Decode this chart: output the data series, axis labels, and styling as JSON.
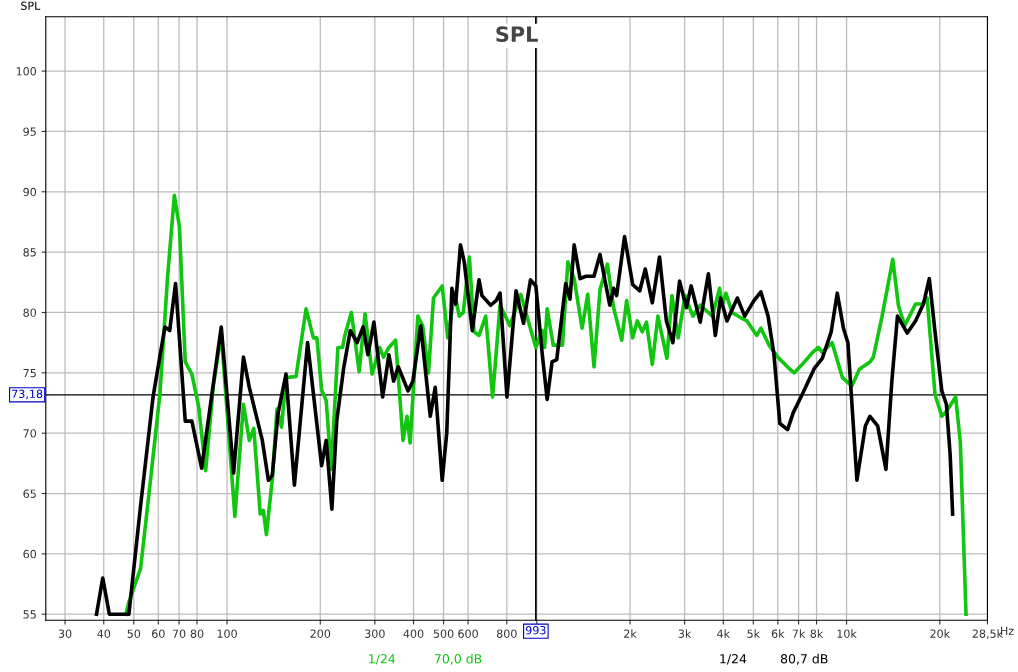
{
  "chart_data": {
    "type": "line",
    "title": "SPL",
    "ylabel": "SPL",
    "log": "x",
    "grid": true,
    "legend": false,
    "xlim": [
      26,
      28500
    ],
    "ylim": [
      54.5,
      104.5
    ],
    "xticks": [
      30,
      40,
      50,
      60,
      70,
      80,
      100,
      200,
      300,
      400,
      500,
      600,
      800,
      {
        "value": 1000,
        "label": null
      },
      {
        "value": 2000,
        "label": "2k"
      },
      {
        "value": 3000,
        "label": "3k"
      },
      {
        "value": 4000,
        "label": "4k"
      },
      {
        "value": 5000,
        "label": "5k"
      },
      {
        "value": 6000,
        "label": "6k"
      },
      {
        "value": 7000,
        "label": "7k"
      },
      {
        "value": 8000,
        "label": "8k"
      },
      {
        "value": 10000,
        "label": "10k"
      },
      {
        "value": 20000,
        "label": "20k"
      },
      {
        "value": 28500,
        "label": "28,5k"
      }
    ],
    "xlabel": "Hz",
    "yticks": [
      55,
      60,
      65,
      70,
      75,
      80,
      85,
      90,
      95,
      100
    ],
    "ref_lines": [
      {
        "axis": "y",
        "value": 73.18,
        "label": "73,18",
        "color": "#000000"
      },
      {
        "axis": "x",
        "value": 993,
        "label": "993",
        "color": "#000000"
      }
    ],
    "annotations": [
      "1/24",
      "70,0 dB",
      "1/24",
      "80,7 dB"
    ],
    "series": [
      {
        "color": "#11c511",
        "x": [
          47.2,
          48.2,
          52.6,
          56.5,
          60.7,
          64.3,
          67.6,
          70.2,
          73.3,
          77,
          81,
          85.3,
          90.4,
          95.8,
          106,
          113,
          118,
          122,
          128,
          131,
          134,
          140,
          145,
          150,
          155,
          167,
          180,
          190,
          195,
          202,
          209,
          217,
          228,
          236,
          240,
          252,
          267,
          279,
          294,
          311,
          320,
          333,
          350,
          370,
          381,
          390,
          413,
          428,
          447,
          464,
          495,
          516,
          543,
          562,
          579,
          606,
          627,
          651,
          684,
          720,
          761,
          819,
          888,
          934,
          993,
          1040,
          1060,
          1080,
          1130,
          1210,
          1260,
          1320,
          1400,
          1460,
          1530,
          1600,
          1690,
          1770,
          1880,
          1950,
          2040,
          2110,
          2190,
          2260,
          2360,
          2460,
          2630,
          2730,
          2860,
          3010,
          3190,
          3370,
          3690,
          3890,
          3970,
          4080,
          4270,
          4530,
          4770,
          5130,
          5290,
          5620,
          6000,
          6500,
          6780,
          7190,
          7770,
          8110,
          8350,
          8980,
          9700,
          10400,
          11000,
          11900,
          12200,
          13000,
          14100,
          14700,
          15400,
          16700,
          17600,
          18200,
          19300,
          20300,
          21000,
          22500,
          23300,
          24300
        ],
        "values": [
          55.0,
          56.0,
          58.8,
          65.9,
          73.2,
          83.0,
          89.7,
          87.1,
          75.9,
          74.9,
          72.2,
          66.9,
          74.0,
          78.3,
          63.1,
          72.4,
          69.4,
          70.4,
          63.3,
          63.6,
          61.6,
          66.2,
          72.0,
          70.5,
          74.6,
          74.7,
          80.3,
          77.9,
          77.9,
          73.6,
          72.7,
          67.0,
          77.1,
          77.1,
          78.1,
          80.0,
          75.1,
          79.9,
          74.9,
          77.1,
          76.3,
          77.1,
          77.7,
          69.4,
          71.4,
          69.2,
          79.7,
          78.9,
          75.0,
          81.2,
          82.2,
          77.9,
          81.6,
          79.7,
          80.0,
          84.6,
          78.4,
          78.1,
          79.7,
          73.0,
          80.6,
          78.9,
          81.5,
          79.5,
          77.1,
          78.5,
          77.1,
          80.3,
          77.3,
          77.3,
          84.2,
          82.8,
          78.7,
          81.5,
          75.5,
          81.9,
          84.0,
          80.4,
          77.7,
          81.0,
          77.9,
          79.3,
          78.4,
          79.2,
          75.7,
          79.7,
          76.2,
          81.4,
          77.9,
          81.4,
          79.7,
          80.6,
          79.7,
          82.0,
          80.6,
          81.6,
          80.0,
          79.6,
          79.3,
          78.1,
          78.7,
          77.3,
          76.3,
          75.4,
          75.0,
          75.7,
          76.7,
          77.1,
          76.7,
          77.5,
          74.6,
          73.9,
          75.3,
          75.9,
          76.3,
          79.6,
          84.4,
          80.6,
          78.9,
          80.7,
          80.7,
          81.2,
          73.2,
          71.4,
          71.8,
          73.0,
          69.2,
          55.0
        ]
      },
      {
        "color": "#000000",
        "x": [
          37.9,
          39.7,
          41.7,
          48.2,
          52.6,
          57.7,
          63,
          65.3,
          68.2,
          73.3,
          77,
          82.8,
          95.8,
          105,
          113,
          118,
          130,
          136,
          140,
          146,
          155,
          165,
          182,
          202,
          209,
          218,
          226,
          238,
          250,
          263,
          275,
          285,
          298,
          318,
          333,
          345,
          357,
          384,
          398,
          422,
          453,
          470,
          495,
          512,
          532,
          547,
          567,
          583,
          619,
          651,
          665,
          710,
          740,
          761,
          801,
          857,
          906,
          954,
          993,
          1040,
          1080,
          1120,
          1160,
          1240,
          1280,
          1320,
          1380,
          1440,
          1530,
          1600,
          1720,
          1770,
          1810,
          1920,
          2040,
          2150,
          2240,
          2360,
          2490,
          2620,
          2750,
          2890,
          3040,
          3150,
          3370,
          3580,
          3770,
          3920,
          4110,
          4440,
          4690,
          5030,
          5290,
          5580,
          5830,
          6090,
          6450,
          6730,
          7190,
          7880,
          8350,
          8920,
          9330,
          9770,
          10100,
          10800,
          11500,
          11900,
          12600,
          13400,
          14000,
          14600,
          15700,
          16700,
          17700,
          18500,
          19300,
          20300,
          21000,
          21600,
          22000
        ],
        "values": [
          55.0,
          58.0,
          55.0,
          55.0,
          64.0,
          73.0,
          78.8,
          78.5,
          82.4,
          71.0,
          71.0,
          67.1,
          78.8,
          66.7,
          76.3,
          73.8,
          69.4,
          66.1,
          66.5,
          71.6,
          74.9,
          65.7,
          77.5,
          67.3,
          69.4,
          63.7,
          71.0,
          75.4,
          78.5,
          77.5,
          78.8,
          76.5,
          79.2,
          73.0,
          76.5,
          74.3,
          75.5,
          73.5,
          74.3,
          78.9,
          71.4,
          73.8,
          66.1,
          70.0,
          82.0,
          80.7,
          85.6,
          84.2,
          78.5,
          82.7,
          81.4,
          80.6,
          81.0,
          81.6,
          73.0,
          81.8,
          79.1,
          82.7,
          82.2,
          76.7,
          72.8,
          75.9,
          76.1,
          82.4,
          81.1,
          85.6,
          82.8,
          83.0,
          83.0,
          84.8,
          80.6,
          82.0,
          81.4,
          86.3,
          82.3,
          81.8,
          83.6,
          80.8,
          84.6,
          79.3,
          77.5,
          82.6,
          80.4,
          82.2,
          79.2,
          83.2,
          78.1,
          81.2,
          79.3,
          81.2,
          79.7,
          81.0,
          81.7,
          79.7,
          76.5,
          70.8,
          70.3,
          71.7,
          73.2,
          75.4,
          76.2,
          78.4,
          81.6,
          78.7,
          77.5,
          66.1,
          70.6,
          71.4,
          70.6,
          67.0,
          74.3,
          79.7,
          78.3,
          79.3,
          80.7,
          82.8,
          78.4,
          73.5,
          72.4,
          68.2,
          63.3
        ]
      }
    ]
  }
}
